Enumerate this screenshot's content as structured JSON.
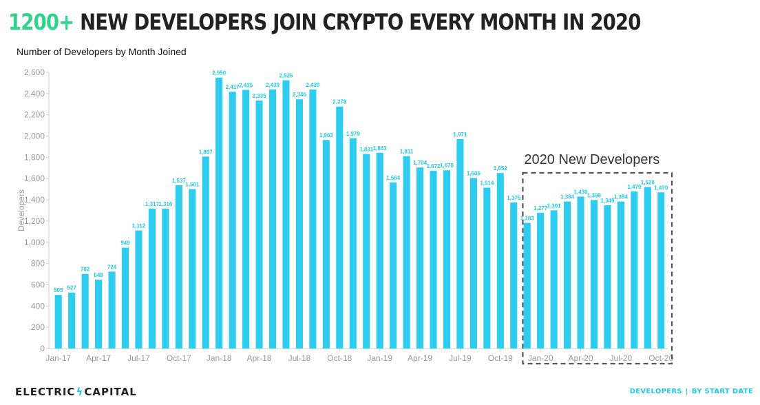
{
  "headline": {
    "accent": "1200+",
    "rest": " NEW DEVELOPERS JOIN CRYPTO EVERY MONTH IN 2020"
  },
  "subtitle": "Number of Developers by Month Joined",
  "brand": {
    "left": "ELECTRIC",
    "right": "CAPITAL"
  },
  "footer": {
    "left": "DEVELOPERS",
    "right": "BY START DATE"
  },
  "colors": {
    "bar": "#2ecdf0",
    "label": "#22c8e6",
    "accent": "#2fd38a",
    "axis": "#999999"
  },
  "chart_data": {
    "type": "bar",
    "title": "Number of Developers by Month Joined",
    "ylabel": "Developers",
    "xlabel": "",
    "ylim": [
      0,
      2600
    ],
    "yticks": [
      "0",
      "200",
      "400",
      "600",
      "800",
      "1,000",
      "1,200",
      "1,400",
      "1,600",
      "1,800",
      "2,000",
      "2,200",
      "2,400",
      "2,600"
    ],
    "categories": [
      "Jan-17",
      "Feb-17",
      "Mar-17",
      "Apr-17",
      "May-17",
      "Jun-17",
      "Jul-17",
      "Aug-17",
      "Sep-17",
      "Oct-17",
      "Nov-17",
      "Dec-17",
      "Jan-18",
      "Feb-18",
      "Mar-18",
      "Apr-18",
      "May-18",
      "Jun-18",
      "Jul-18",
      "Aug-18",
      "Sep-18",
      "Oct-18",
      "Nov-18",
      "Dec-18",
      "Jan-19",
      "Feb-19",
      "Mar-19",
      "Apr-19",
      "May-19",
      "Jun-19",
      "Jul-19",
      "Aug-19",
      "Sep-19",
      "Oct-19",
      "Nov-19",
      "Dec-19",
      "Jan-20",
      "Feb-20",
      "Mar-20",
      "Apr-20",
      "May-20",
      "Jun-20",
      "Jul-20",
      "Aug-20",
      "Sep-20",
      "Oct-20"
    ],
    "values": [
      505,
      527,
      702,
      648,
      724,
      949,
      1112,
      1317,
      1316,
      1537,
      1501,
      1807,
      2550,
      2417,
      2435,
      2335,
      2439,
      2525,
      2346,
      2439,
      1963,
      2278,
      1979,
      1831,
      1843,
      1564,
      1811,
      1704,
      1672,
      1678,
      1971,
      1605,
      1514,
      1652,
      1375,
      1183,
      1277,
      1301,
      1384,
      1430,
      1398,
      1349,
      1384,
      1479,
      1520,
      1470
    ],
    "value_labels": [
      "505",
      "527",
      "702",
      "648",
      "724",
      "949",
      "1,112",
      "1,317",
      "1,316",
      "1,537",
      "1,501",
      "1,807",
      "2,550",
      "2,417",
      "2,435",
      "2,335",
      "2,439",
      "2,525",
      "2,346",
      "2,439",
      "1,963",
      "2,278",
      "1,979",
      "1,831",
      "1,843",
      "1,564",
      "1,811",
      "1,704",
      "1,672",
      "1,678",
      "1,971",
      "1,605",
      "1,514",
      "1,652",
      "1,375",
      "1,183",
      "1,277",
      "1,301",
      "1,384",
      "1,430",
      "1,398",
      "1,349",
      "1,384",
      "1,479",
      "1,520",
      "1,470"
    ],
    "xtick_labels": [
      "Jan-17",
      "Apr-17",
      "Jul-17",
      "Oct-17",
      "Jan-18",
      "Apr-18",
      "Jul-18",
      "Oct-18",
      "Jan-19",
      "Apr-19",
      "Jul-19",
      "Oct-19",
      "Jan-20",
      "Apr-20",
      "Jul-20",
      "Oct-20"
    ],
    "annotation": {
      "text": "2020 New Developers",
      "range": [
        "Jan-20",
        "Oct-20"
      ]
    },
    "grid": false,
    "legend": "none"
  }
}
